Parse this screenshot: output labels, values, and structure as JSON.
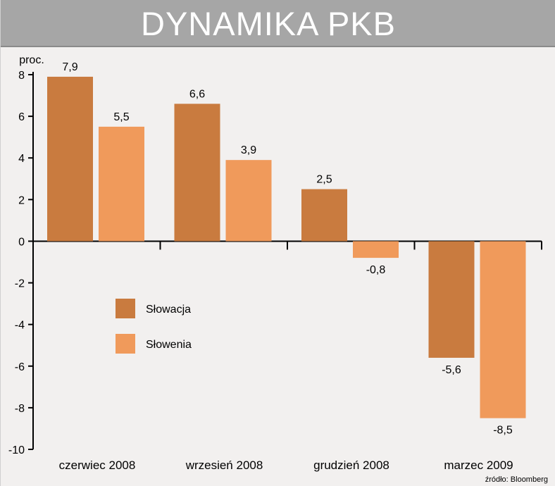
{
  "chart_data": {
    "type": "bar",
    "title": "DYNAMIKA PKB",
    "ylabel": "proc.",
    "categories": [
      "czerwiec 2008",
      "wrzesień 2008",
      "grudzień 2008",
      "marzec 2009"
    ],
    "series": [
      {
        "name": "Słowacja",
        "values": [
          7.9,
          6.6,
          2.5,
          -5.6
        ],
        "labels": [
          "7,9",
          "6,6",
          "2,5",
          "-5,6"
        ],
        "color": "#c97b3f"
      },
      {
        "name": "Słowenia",
        "values": [
          5.5,
          3.9,
          -0.8,
          -8.5
        ],
        "labels": [
          "5,5",
          "3,9",
          "-0,8",
          "-8,5"
        ],
        "color": "#f09a5b"
      }
    ],
    "ylim": [
      -10,
      8
    ],
    "yticks": [
      8,
      6,
      4,
      2,
      0,
      -2,
      -4,
      -6,
      -8,
      -10
    ],
    "grid": false,
    "legend_position": "inside-left"
  },
  "source": "źródło: Bloomberg"
}
